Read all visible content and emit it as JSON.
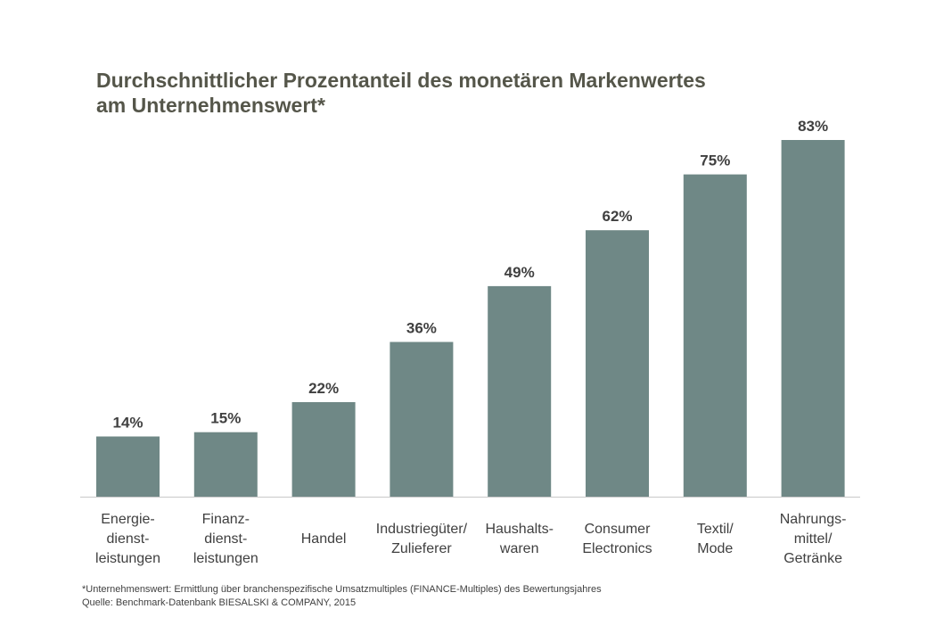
{
  "title": {
    "line1": "Durchschnittlicher Prozentanteil des monetären Markenwertes",
    "line2": "am Unternehmenswert*"
  },
  "colors": {
    "bar": "#6f8886",
    "title": "#55564a",
    "text": "#404040",
    "axis": "#c8c8c8"
  },
  "chart_data": {
    "type": "bar",
    "title": "Durchschnittlicher Prozentanteil des monetären Markenwertes am Unternehmenswert*",
    "categories": [
      "Energie-dienst-leistungen",
      "Finanz-dienst-leistungen",
      "Handel",
      "Industriegüter/ Zulieferer",
      "Haushalts-waren",
      "Consumer Electronics",
      "Textil/ Mode",
      "Nahrungs-mittel/ Getränke"
    ],
    "category_lines": [
      [
        "Energie-",
        "dienst-",
        "leistungen"
      ],
      [
        "Finanz-",
        "dienst-",
        "leistungen"
      ],
      [
        "Handel"
      ],
      [
        "Industriegüter/",
        "Zulieferer"
      ],
      [
        "Haushalts-",
        "waren"
      ],
      [
        "Consumer",
        "Electronics"
      ],
      [
        "Textil/",
        "Mode"
      ],
      [
        "Nahrungs-",
        "mittel/",
        "Getränke"
      ]
    ],
    "values": [
      14,
      15,
      22,
      36,
      49,
      62,
      75,
      83
    ],
    "value_labels": [
      "14%",
      "15%",
      "22%",
      "36%",
      "49%",
      "62%",
      "75%",
      "83%"
    ],
    "xlabel": "",
    "ylabel": "",
    "ylim": [
      0,
      83
    ],
    "grid": false,
    "legend": "none"
  },
  "footnote": {
    "line1": "*Unternehmenswert: Ermittlung über branchenspezifische Umsatzmultiples (FINANCE-Multiples) des Bewertungsjahres",
    "line2": "Quelle: Benchmark-Datenbank BIESALSKI & COMPANY,  2015"
  }
}
